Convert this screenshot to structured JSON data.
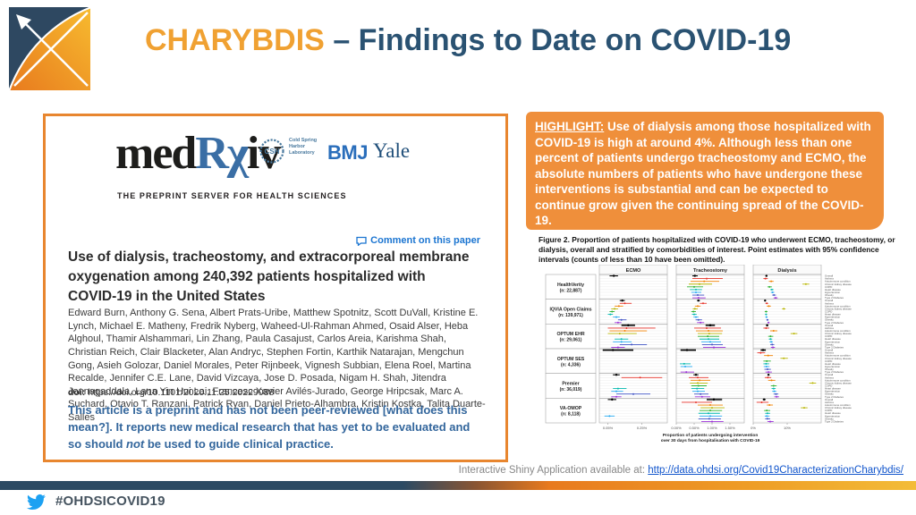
{
  "header": {
    "title_accent": "CHARYBDIS",
    "title_rest": " – Findings to Date on COVID-19"
  },
  "paper": {
    "logo_med": "med",
    "logo_r": "R",
    "logo_chi": "χ",
    "logo_iv": "iv",
    "tagline": "THE PREPRINT SERVER FOR HEALTH SCIENCES",
    "csh_abbr": "CSH",
    "csh_name": "Cold Spring Harbor Laboratory",
    "bmj": "BMJ",
    "yale": "Yale",
    "comment_link": "Comment on this paper",
    "title": "Use of dialysis, tracheostomy, and extracorporeal membrane oxygenation among 240,392 patients hospitalized with COVID-19 in the United States",
    "authors": "Edward Burn, Anthony G. Sena, Albert Prats-Uribe, Matthew Spotnitz, Scott DuVall, Kristine E. Lynch, Michael E. Matheny, Fredrik Nyberg, Waheed-Ul-Rahman Ahmed, Osaid Alser, Heba Alghoul, Thamir Alshammari, Lin Zhang, Paula Casajust, Carlos Areia, Karishma Shah, Christian Reich, Clair Blacketer, Alan Andryc, Stephen Fortin, Karthik Natarajan, Mengchun Gong, Asieh Golozar, Daniel Morales, Peter Rijnbeek, Vignesh Subbian, Elena Roel, Martina Recalde, Jennifer C.E. Lane, David Vizcaya, Jose D. Posada, Nigam H. Shah, Jitendra Jonnagaddala, Lana Yin Hui Lai, Francesc Xavier Avilés-Jurado, George Hripcsak, Marc A. Suchard, Otavio T. Ranzani, Patrick Ryan, Daniel Prieto-Alhambra, Kristin Kostka, Talita Duarte-Salles",
    "doi_label": "doi:",
    "doi_value": "https://doi.org/10.1101/2020.11.25.20229088",
    "disclaimer_1": "This article is a preprint and has not been peer-reviewed [what does this mean?]. It reports new medical research that has yet to be evaluated and so should ",
    "disclaimer_italic": "not",
    "disclaimer_2": " be used to guide clinical practice."
  },
  "highlight": {
    "label": "HIGHLIGHT:",
    "text": "  Use of dialysis among those hospitalized with COVID-19 is high at around 4%. Although less than one percent of patients undergo tracheostomy and ECMO, the absolute numbers of patients who have undergone these interventions is substantial and can be expected to continue grow given the continuing spread of the COVID-19."
  },
  "figure": {
    "caption": "Figure 2. Proportion of patients hospitalized with COVID-19 who underwent ECMO, tracheostomy, or dialysis, overall and stratified by comorbidities of interest. Point estimates with 95% confidence intervals (counts of less than 10 have been omitted)."
  },
  "shiny": {
    "prefix": "Interactive Shiny Application available at: ",
    "link": "http://data.ohdsi.org/Covid19CharacterizationCharybdis/"
  },
  "footer": {
    "hashtag": "#OHDSICOVID19"
  },
  "colors": {
    "title_accent": "#F0A132",
    "title_rest": "#2A5272",
    "highlight_bg": "#EF8F3B",
    "card_border": "#E8862F",
    "footer_navy": "#2C4A63",
    "footer_orange": "#E87A1E",
    "footer_gold": "#F3BC38",
    "twitter_blue": "#1DA1F2"
  },
  "chart_data": {
    "type": "forest",
    "title": "Figure 2. Proportion of patients hospitalized with COVID-19 who underwent ECMO, tracheostomy, or dialysis, overall and stratified by comorbidities of interest.",
    "xlabel_line1": "Proportion of patients undergoing intervention",
    "xlabel_line2": "over 30 days from hospitalisation with COVID-19",
    "panels": [
      "ECMO",
      "Tracheostomy",
      "Dialysis"
    ],
    "databases": [
      [
        "HealthVerity",
        "(n: 22,887)"
      ],
      [
        "IQVIA Open Claims",
        "(n: 139,971)"
      ],
      [
        "OPTUM EHR",
        "(n: 29,061)"
      ],
      [
        "OPTUM SES",
        "(n: 4,336)"
      ],
      [
        "Premier",
        "(n: 36,019)"
      ],
      [
        "VA-OMOP",
        "(n: 8,118)"
      ]
    ],
    "strata": [
      {
        "label": "Overall",
        "color": "#000000"
      },
      {
        "label": "Asthma",
        "color": "#e53228"
      },
      {
        "label": "Autoimmune condition",
        "color": "#f08100"
      },
      {
        "label": "Chronic kidney disease",
        "color": "#b7b400"
      },
      {
        "label": "COPD",
        "color": "#2fb12f"
      },
      {
        "label": "Heart disease",
        "color": "#00b8ae"
      },
      {
        "label": "Hypertension",
        "color": "#22a7f0"
      },
      {
        "label": "Obesity",
        "color": "#3d50c3"
      },
      {
        "label": "Type 2 Diabetes",
        "color": "#9b30d9"
      }
    ],
    "axes": [
      {
        "panel": "ECMO",
        "max": 0.4,
        "ticks": [
          [
            0.05,
            "0.05%"
          ],
          [
            0.25,
            "0.25%"
          ]
        ]
      },
      {
        "panel": "Tracheostomy",
        "max": 1.9,
        "ticks": [
          [
            0.0,
            "0.00%"
          ],
          [
            0.5,
            "0.50%"
          ],
          [
            1.0,
            "1.00%"
          ],
          [
            1.5,
            "1.50%"
          ]
        ]
      },
      {
        "panel": "Dialysis",
        "max": 20,
        "ticks": [
          [
            0,
            "0%"
          ],
          [
            10,
            "10%"
          ]
        ]
      }
    ],
    "rows": {
      "ECMO": [
        [
          [
            0,
            0.06,
            0.085,
            0.11
          ]
        ],
        [
          [
            0,
            0.12,
            0.135,
            0.15
          ],
          [
            1,
            0.12,
            0.15,
            0.19
          ],
          [
            2,
            0.09,
            0.115,
            0.14
          ],
          [
            3,
            0.07,
            0.09,
            0.11
          ],
          [
            4,
            0.06,
            0.075,
            0.09
          ],
          [
            5,
            0.05,
            0.065,
            0.08
          ],
          [
            6,
            0.08,
            0.1,
            0.12
          ],
          [
            7,
            0.11,
            0.13,
            0.16
          ],
          [
            8,
            0.09,
            0.11,
            0.13
          ]
        ],
        [
          [
            0,
            0.13,
            0.17,
            0.21,
            1
          ],
          [
            1,
            0.05,
            0.16,
            0.33
          ],
          [
            2,
            0.06,
            0.15,
            0.28
          ],
          [
            3,
            0.05,
            0.12,
            0.22
          ],
          [
            5,
            0.09,
            0.13,
            0.17
          ],
          [
            6,
            0.08,
            0.13,
            0.19
          ],
          [
            7,
            0.12,
            0.19,
            0.28
          ],
          [
            8,
            0.07,
            0.11,
            0.15
          ]
        ],
        [
          [
            0,
            0.02,
            0.08,
            0.2,
            1
          ]
        ],
        [
          [
            0,
            0.08,
            0.1,
            0.12
          ],
          [
            1,
            0.13,
            0.24,
            0.37
          ],
          [
            5,
            0.08,
            0.11,
            0.16
          ],
          [
            6,
            0.07,
            0.1,
            0.14
          ],
          [
            7,
            0.1,
            0.2,
            0.3
          ],
          [
            8,
            0.07,
            0.1,
            0.13
          ]
        ],
        [
          [
            0,
            0.05,
            0.075,
            0.1
          ],
          [
            6,
            0.03,
            0.06,
            0.09
          ]
        ]
      ],
      "Tracheostomy": [
        [
          [
            0,
            0.45,
            0.52,
            0.6
          ],
          [
            1,
            0.45,
            0.85,
            1.3
          ],
          [
            2,
            0.4,
            0.78,
            1.2
          ],
          [
            3,
            0.35,
            0.65,
            1.0
          ],
          [
            4,
            0.3,
            0.5,
            0.75
          ],
          [
            5,
            0.38,
            0.55,
            0.72
          ],
          [
            6,
            0.42,
            0.55,
            0.7
          ],
          [
            7,
            0.45,
            0.6,
            0.78
          ],
          [
            8,
            0.45,
            0.62,
            0.82
          ]
        ],
        [
          [
            0,
            0.58,
            0.62,
            0.66
          ],
          [
            1,
            0.66,
            0.75,
            0.85
          ],
          [
            2,
            0.52,
            0.6,
            0.68
          ],
          [
            3,
            0.46,
            0.52,
            0.6
          ],
          [
            4,
            0.42,
            0.48,
            0.55
          ],
          [
            5,
            0.44,
            0.5,
            0.57
          ],
          [
            6,
            0.48,
            0.55,
            0.62
          ],
          [
            7,
            0.54,
            0.62,
            0.72
          ],
          [
            8,
            0.58,
            0.68,
            0.78
          ]
        ],
        [
          [
            0,
            0.82,
            0.95,
            1.08,
            1
          ],
          [
            1,
            0.5,
            0.85,
            1.25
          ],
          [
            2,
            0.55,
            0.9,
            1.3
          ],
          [
            3,
            0.6,
            0.92,
            1.28
          ],
          [
            4,
            0.6,
            0.88,
            1.2
          ],
          [
            5,
            0.65,
            0.9,
            1.2
          ],
          [
            6,
            0.7,
            0.95,
            1.25
          ],
          [
            7,
            0.72,
            1.0,
            1.3
          ],
          [
            8,
            0.75,
            1.05,
            1.38
          ]
        ],
        [
          [
            0,
            0.12,
            0.3,
            0.55,
            1
          ],
          [
            5,
            0.1,
            0.22,
            0.4
          ],
          [
            6,
            0.12,
            0.25,
            0.45
          ],
          [
            8,
            0.12,
            0.28,
            0.5
          ]
        ],
        [
          [
            0,
            0.48,
            0.55,
            0.62
          ],
          [
            1,
            0.35,
            0.6,
            0.9
          ],
          [
            2,
            0.4,
            0.65,
            0.95
          ],
          [
            3,
            0.38,
            0.6,
            0.88
          ],
          [
            4,
            0.42,
            0.62,
            0.85
          ],
          [
            5,
            0.42,
            0.58,
            0.78
          ],
          [
            6,
            0.45,
            0.6,
            0.8
          ],
          [
            7,
            0.5,
            0.68,
            0.9
          ],
          [
            8,
            0.52,
            0.72,
            0.95
          ]
        ],
        [
          [
            0,
            0.85,
            1.05,
            1.28,
            1
          ],
          [
            1,
            0.15,
            0.55,
            1.0
          ],
          [
            2,
            0.6,
            0.95,
            1.3
          ],
          [
            3,
            0.68,
            1.0,
            1.35
          ],
          [
            4,
            0.65,
            0.95,
            1.28
          ],
          [
            5,
            0.62,
            0.9,
            1.22
          ],
          [
            6,
            0.65,
            0.95,
            1.28
          ],
          [
            7,
            0.62,
            0.92,
            1.25
          ],
          [
            8,
            0.7,
            1.0,
            1.32
          ]
        ]
      ],
      "Dialysis": [
        [
          [
            0,
            3.6,
            3.9,
            4.2
          ],
          [
            1,
            3.0,
            3.6,
            4.3
          ],
          [
            2,
            4.6,
            5.3,
            6.0
          ],
          [
            3,
            14.5,
            15.5,
            16.5
          ],
          [
            4,
            4.2,
            4.8,
            5.5
          ],
          [
            5,
            5.0,
            5.5,
            6.0
          ],
          [
            6,
            5.2,
            5.7,
            6.2
          ],
          [
            7,
            5.6,
            6.1,
            6.7
          ],
          [
            8,
            6.0,
            6.6,
            7.2
          ]
        ],
        [
          [
            0,
            3.3,
            3.5,
            3.7
          ],
          [
            1,
            3.6,
            4.0,
            4.4
          ],
          [
            2,
            4.0,
            4.6,
            5.2
          ],
          [
            3,
            8.5,
            9.0,
            9.5
          ],
          [
            4,
            3.4,
            3.8,
            4.2
          ],
          [
            5,
            3.5,
            3.8,
            4.1
          ],
          [
            6,
            3.6,
            3.9,
            4.2
          ],
          [
            7,
            3.9,
            4.2,
            4.5
          ],
          [
            8,
            4.2,
            4.5,
            4.8
          ]
        ],
        [
          [
            0,
            3.8,
            4.1,
            4.4,
            1
          ],
          [
            1,
            3.0,
            3.8,
            4.7
          ],
          [
            2,
            5.0,
            6.0,
            7.1
          ],
          [
            3,
            11.0,
            12.0,
            13.0
          ],
          [
            4,
            4.4,
            5.1,
            5.9
          ],
          [
            5,
            4.6,
            5.1,
            5.6
          ],
          [
            6,
            4.8,
            5.3,
            5.8
          ],
          [
            7,
            5.0,
            5.6,
            6.2
          ],
          [
            8,
            5.2,
            5.8,
            6.4
          ]
        ],
        [
          [
            0,
            2.2,
            2.9,
            3.7,
            1
          ],
          [
            1,
            1.2,
            2.2,
            3.5
          ],
          [
            2,
            3.2,
            4.4,
            5.8
          ],
          [
            3,
            8.0,
            9.0,
            10.2
          ],
          [
            4,
            3.0,
            4.0,
            5.2
          ],
          [
            5,
            3.0,
            3.8,
            4.7
          ],
          [
            6,
            3.1,
            3.9,
            4.8
          ],
          [
            7,
            3.3,
            4.2,
            5.2
          ],
          [
            8,
            3.6,
            4.5,
            5.5
          ]
        ],
        [
          [
            0,
            4.2,
            4.5,
            4.8
          ],
          [
            1,
            3.4,
            4.3,
            5.3
          ],
          [
            2,
            4.4,
            5.4,
            6.5
          ],
          [
            3,
            16.5,
            17.5,
            18.5
          ],
          [
            4,
            5.2,
            6.0,
            6.9
          ],
          [
            5,
            5.4,
            6.0,
            6.6
          ],
          [
            6,
            5.6,
            6.2,
            6.8
          ],
          [
            7,
            6.0,
            6.7,
            7.4
          ],
          [
            8,
            6.2,
            6.9,
            7.6
          ]
        ],
        [
          [
            0,
            2.8,
            3.2,
            3.7
          ],
          [
            1,
            1.0,
            2.5,
            4.5
          ],
          [
            2,
            4.0,
            4.8,
            5.8
          ],
          [
            3,
            14.0,
            15.0,
            16.0
          ],
          [
            4,
            3.2,
            4.0,
            5.0
          ],
          [
            5,
            3.5,
            4.2,
            5.0
          ],
          [
            6,
            3.4,
            4.0,
            4.8
          ],
          [
            7,
            3.5,
            4.2,
            5.0
          ],
          [
            8,
            4.2,
            5.0,
            6.0
          ]
        ]
      ]
    }
  }
}
